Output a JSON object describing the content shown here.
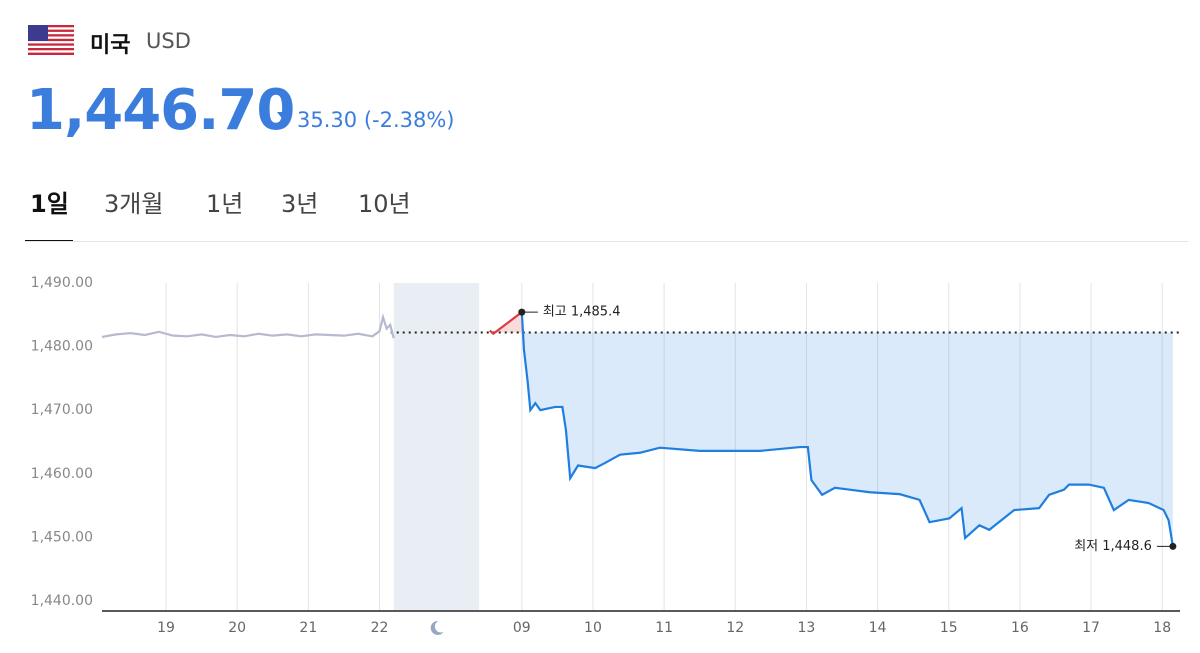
{
  "header": {
    "country": "미국",
    "currency": "USD",
    "price": "1,446.70",
    "change": "35.30",
    "change_pct": "(-2.38%)"
  },
  "tabs": [
    "1일",
    "3개월",
    "1년",
    "3년",
    "10년"
  ],
  "active_tab": 0,
  "chart_data": {
    "type": "line",
    "xlim": [
      18.1,
      33.25
    ],
    "ylim": [
      1438.6,
      1492.8
    ],
    "xticks": [
      {
        "value": 19,
        "label": "19"
      },
      {
        "value": 20,
        "label": "20"
      },
      {
        "value": 21,
        "label": "21"
      },
      {
        "value": 22,
        "label": "22"
      },
      {
        "value": 24,
        "label": "09"
      },
      {
        "value": 25,
        "label": "10"
      },
      {
        "value": 26,
        "label": "11"
      },
      {
        "value": 27,
        "label": "12"
      },
      {
        "value": 28,
        "label": "13"
      },
      {
        "value": 29,
        "label": "14"
      },
      {
        "value": 30,
        "label": "15"
      },
      {
        "value": 31,
        "label": "16"
      },
      {
        "value": 32,
        "label": "17"
      },
      {
        "value": 33,
        "label": "18"
      }
    ],
    "yticks": [
      {
        "value": 1440,
        "label": "1,440.00"
      },
      {
        "value": 1450,
        "label": "1,450.00"
      },
      {
        "value": 1460,
        "label": "1,460.00"
      },
      {
        "value": 1470,
        "label": "1,470.00"
      },
      {
        "value": 1480,
        "label": "1,480.00"
      },
      {
        "value": 1490,
        "label": "1,490.00"
      }
    ],
    "night_band": [
      22.2,
      23.4
    ],
    "reference": 1482.2,
    "series": [
      {
        "color": "#b7b9cf",
        "x": [
          18.1,
          18.3,
          18.5,
          18.7,
          18.9,
          19.1,
          19.3,
          19.5,
          19.7,
          19.9,
          20.1,
          20.3,
          20.5,
          20.7,
          20.9,
          21.1,
          21.3,
          21.5,
          21.7,
          21.9,
          22.0,
          22.05,
          22.1,
          22.15,
          22.2
        ],
        "values": [
          1481.5,
          1481.9,
          1482.1,
          1481.8,
          1482.3,
          1481.7,
          1481.6,
          1481.9,
          1481.5,
          1481.8,
          1481.6,
          1482.0,
          1481.7,
          1481.9,
          1481.6,
          1481.9,
          1481.8,
          1481.7,
          1482.0,
          1481.6,
          1482.4,
          1484.6,
          1482.8,
          1483.4,
          1481.3
        ]
      },
      {
        "color": "#e0393e",
        "x": [
          23.55,
          23.6,
          24.0
        ],
        "values": [
          1482.5,
          1482.0,
          1485.4
        ]
      },
      {
        "color": "#1f7fe0",
        "x": [
          24.0,
          24.03,
          24.08,
          24.12,
          24.19,
          24.26,
          24.47,
          24.57,
          24.62,
          24.68,
          24.79,
          25.03,
          25.17,
          25.38,
          25.66,
          25.94,
          26.5,
          27.35,
          27.91,
          28.02,
          28.07,
          28.22,
          28.4,
          28.61,
          28.89,
          29.31,
          29.59,
          29.73,
          30.01,
          30.18,
          30.23,
          30.43,
          30.57,
          30.92,
          31.27,
          31.41,
          31.62,
          31.69,
          31.97,
          32.18,
          32.32,
          32.53,
          32.81,
          33.02,
          33.09,
          33.15
        ],
        "values": [
          1485.4,
          1479.5,
          1474.7,
          1470.0,
          1471.1,
          1470.0,
          1470.5,
          1470.5,
          1466.9,
          1459.3,
          1461.3,
          1460.9,
          1461.7,
          1463.0,
          1463.3,
          1464.1,
          1463.6,
          1463.6,
          1464.2,
          1464.2,
          1459.0,
          1456.7,
          1457.8,
          1457.5,
          1457.1,
          1456.8,
          1455.9,
          1452.4,
          1453.0,
          1454.6,
          1449.9,
          1451.9,
          1451.2,
          1454.3,
          1454.6,
          1456.7,
          1457.5,
          1458.3,
          1458.3,
          1457.8,
          1454.3,
          1455.9,
          1455.4,
          1454.3,
          1452.7,
          1448.6
        ]
      }
    ],
    "high": {
      "x": 24.0,
      "value": 1485.4,
      "label": "최고 1,485.4"
    },
    "low": {
      "x": 33.15,
      "value": 1448.6,
      "label": "최저 1,448.6"
    }
  }
}
